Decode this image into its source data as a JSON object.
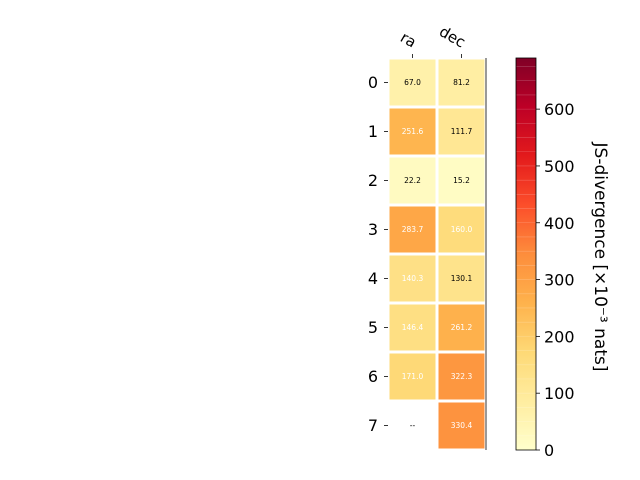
{
  "chart_data": {
    "type": "heatmap",
    "columns": [
      "ra",
      "dec"
    ],
    "rows": [
      "0",
      "1",
      "2",
      "3",
      "4",
      "5",
      "6",
      "7"
    ],
    "values": [
      [
        67.0,
        81.2
      ],
      [
        251.6,
        111.7
      ],
      [
        22.2,
        15.2
      ],
      [
        283.7,
        160.0
      ],
      [
        140.3,
        130.1
      ],
      [
        146.4,
        261.2
      ],
      [
        171.0,
        322.3
      ],
      [
        null,
        330.4
      ]
    ],
    "cell_labels": [
      [
        "67.0",
        "81.2"
      ],
      [
        "251.6",
        "111.7"
      ],
      [
        "22.2",
        "15.2"
      ],
      [
        "283.7",
        "160.0"
      ],
      [
        "140.3",
        "130.1"
      ],
      [
        "146.4",
        "261.2"
      ],
      [
        "171.0",
        "322.3"
      ],
      [
        "--",
        "330.4"
      ]
    ],
    "colorbar": {
      "label": "JS-divergence [×10⁻³ nats]",
      "colormap": "YlOrRd",
      "range": [
        0,
        690
      ],
      "ticks": [
        "0",
        "100",
        "200",
        "300",
        "400",
        "500",
        "600"
      ]
    }
  }
}
